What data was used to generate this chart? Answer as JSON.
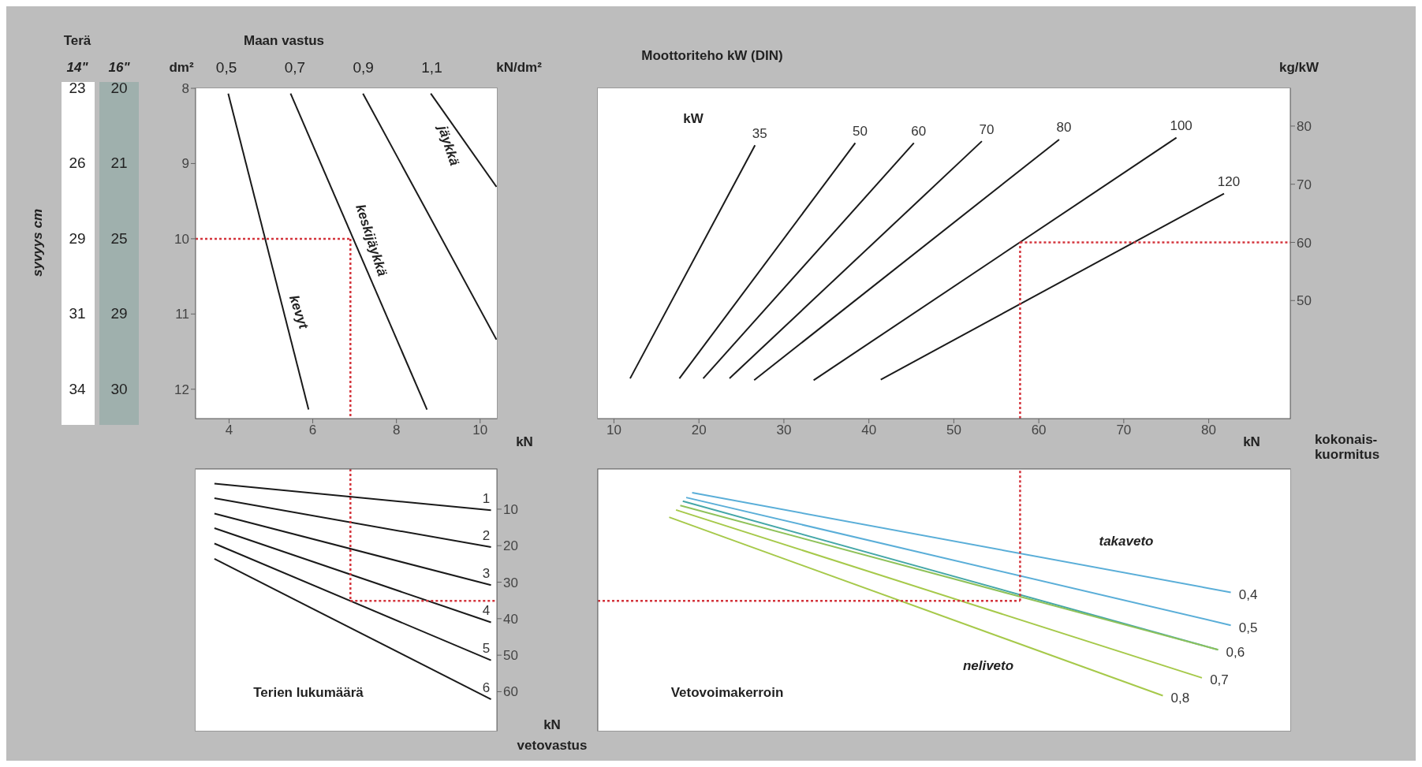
{
  "chart_data": [
    {
      "type": "line",
      "xlabel": "kN",
      "ylabel": "dm²",
      "x2label": "Maan vastus",
      "marker": "none",
      "line_style": "solid",
      "xlim": [
        3.2,
        10.4
      ],
      "xticks": [
        4,
        6,
        8,
        10
      ],
      "ylim": [
        12.39,
        8
      ],
      "yticks": [
        8,
        9,
        10,
        11,
        12
      ],
      "x2lim": [
        0.41,
        1.29
      ],
      "x2ticks": [
        {
          "value": 0.5,
          "label": "0,5"
        },
        {
          "value": 0.7,
          "label": "0,7"
        },
        {
          "value": 0.9,
          "label": "0,9"
        },
        {
          "value": 1.1,
          "label": "1,1"
        }
      ],
      "series": [
        {
          "color": "#1a1a1a",
          "x": [
            3.98,
            5.9
          ],
          "values": [
            8.07,
            12.27
          ]
        },
        {
          "color": "#1a1a1a",
          "x": [
            5.47,
            8.73
          ],
          "values": [
            8.07,
            12.27
          ]
        },
        {
          "color": "#1a1a1a",
          "x": [
            7.2,
            10.39
          ],
          "values": [
            8.07,
            11.34
          ]
        },
        {
          "color": "#1a1a1a",
          "x": [
            8.82,
            10.39
          ],
          "values": [
            8.07,
            9.31
          ]
        },
        {
          "color": "#d4343c",
          "line_style": "dotted",
          "x": [
            3.2,
            6.9
          ],
          "values": [
            10,
            10
          ]
        },
        {
          "color": "#d4343c",
          "line_style": "dotted",
          "x": [
            6.9,
            6.9
          ],
          "values": [
            10,
            12.39
          ]
        }
      ],
      "annotations": [
        "Terä",
        "syvyys cm",
        "kN/dm²",
        "14\"",
        "16\"",
        "23",
        "26",
        "29",
        "31",
        "34",
        "20",
        "21",
        "25",
        "29",
        "30",
        "kevyt",
        "keskijäykkä",
        "jäykkä"
      ]
    },
    {
      "type": "line",
      "title": "Moottoriteho kW (DIN)",
      "xlabel": "kN",
      "ylabel": "kg/kW",
      "marker": "none",
      "line_style": "solid",
      "xlim": [
        8.1,
        89.6
      ],
      "xticks": [
        10,
        20,
        30,
        40,
        50,
        60,
        70,
        80
      ],
      "ylim": [
        29.7,
        86.5
      ],
      "yticks": [
        50,
        60,
        70,
        80
      ],
      "series": [
        {
          "name": "35",
          "color": "#1a1a1a",
          "x": [
            11.9,
            26.6
          ],
          "values": [
            36.6,
            76.7
          ]
        },
        {
          "name": "50",
          "color": "#1a1a1a",
          "x": [
            17.7,
            38.4
          ],
          "values": [
            36.6,
            77.1
          ]
        },
        {
          "name": "60",
          "color": "#1a1a1a",
          "x": [
            20.5,
            45.3
          ],
          "values": [
            36.6,
            77.1
          ]
        },
        {
          "name": "70",
          "color": "#1a1a1a",
          "x": [
            23.6,
            53.3
          ],
          "values": [
            36.6,
            77.4
          ]
        },
        {
          "name": "80",
          "color": "#1a1a1a",
          "x": [
            26.5,
            62.4
          ],
          "values": [
            36.3,
            77.7
          ]
        },
        {
          "name": "100",
          "color": "#1a1a1a",
          "x": [
            33.5,
            76.2
          ],
          "values": [
            36.3,
            78
          ]
        },
        {
          "name": "120",
          "color": "#1a1a1a",
          "x": [
            41.4,
            81.8
          ],
          "values": [
            36.4,
            68.4
          ]
        },
        {
          "color": "#d4343c",
          "line_style": "dotted",
          "x": [
            57.8,
            57.8
          ],
          "values": [
            29.7,
            60
          ]
        },
        {
          "color": "#d4343c",
          "line_style": "dotted",
          "x": [
            57.8,
            89.6
          ],
          "values": [
            60,
            60
          ]
        }
      ],
      "annotations": [
        "kW",
        "kokonais-kuormitus"
      ]
    },
    {
      "type": "line",
      "ylabel": "kN",
      "marker": "none",
      "line_style": "solid",
      "tick_labels": "y",
      "xlim": [
        3.2,
        10.4
      ],
      "xticks": [
        4,
        6,
        8,
        10
      ],
      "ylim": [
        70.7,
        -1
      ],
      "yticks": [
        10,
        20,
        30,
        40,
        50,
        60
      ],
      "series": [
        {
          "name": "1",
          "color": "#1a1a1a",
          "x": [
            3.65,
            10.26
          ],
          "values": [
            3,
            10.3
          ]
        },
        {
          "name": "2",
          "color": "#1a1a1a",
          "x": [
            3.65,
            10.26
          ],
          "values": [
            7,
            20.4
          ]
        },
        {
          "name": "3",
          "color": "#1a1a1a",
          "x": [
            3.65,
            10.26
          ],
          "values": [
            11.2,
            30.8
          ]
        },
        {
          "name": "4",
          "color": "#1a1a1a",
          "x": [
            3.65,
            10.26
          ],
          "values": [
            15.2,
            41
          ]
        },
        {
          "name": "5",
          "color": "#1a1a1a",
          "x": [
            3.65,
            10.26
          ],
          "values": [
            19.4,
            51.4
          ]
        },
        {
          "name": "6",
          "color": "#1a1a1a",
          "x": [
            3.65,
            10.26
          ],
          "values": [
            23.6,
            62.1
          ]
        },
        {
          "color": "#d4343c",
          "line_style": "dotted",
          "x": [
            6.9,
            6.9
          ],
          "values": [
            -1,
            35.1
          ]
        },
        {
          "color": "#d4343c",
          "line_style": "dotted",
          "x": [
            6.9,
            10.4
          ],
          "values": [
            35.1,
            35.1
          ]
        }
      ],
      "annotations": [
        "vetovastus",
        "Terien lukumäärä"
      ]
    },
    {
      "type": "line",
      "marker": "none",
      "line_style": "solid",
      "tick_labels": false,
      "xlim": [
        8.1,
        89.6
      ],
      "xticks": [
        10,
        20,
        30,
        40,
        50,
        60,
        70,
        80
      ],
      "ylim": [
        70.7,
        -1
      ],
      "yticks": [
        10,
        20,
        30,
        40,
        50,
        60
      ],
      "series": [
        {
          "name": "0,4",
          "color": "#5aaed8",
          "x": [
            19.2,
            82.6
          ],
          "values": [
            5.5,
            32.8
          ]
        },
        {
          "name": "0,5",
          "color": "#5aaed8",
          "x": [
            18.5,
            82.6
          ],
          "values": [
            6.8,
            41.8
          ]
        },
        {
          "name": "0,6",
          "color": "#45a7a8",
          "x": [
            18.1,
            81.1
          ],
          "values": [
            7.8,
            48.5
          ]
        },
        {
          "color": "#8fc25a",
          "x": [
            17.8,
            81.1
          ],
          "values": [
            9,
            48.5
          ]
        },
        {
          "name": "0,7",
          "color": "#a6c94a",
          "x": [
            17.3,
            79.2
          ],
          "values": [
            10.2,
            56.2
          ]
        },
        {
          "name": "0,8",
          "color": "#a6c94a",
          "x": [
            16.5,
            74.6
          ],
          "values": [
            12.2,
            61.1
          ]
        },
        {
          "color": "#d4343c",
          "line_style": "dotted",
          "x": [
            8.1,
            57.8
          ],
          "values": [
            35.1,
            35.1
          ]
        },
        {
          "color": "#d4343c",
          "line_style": "dotted",
          "x": [
            57.8,
            57.8
          ],
          "values": [
            35.1,
            -1
          ]
        }
      ],
      "annotations": [
        "Vetovoimakerroin",
        "takaveto",
        "neliveto"
      ]
    }
  ]
}
